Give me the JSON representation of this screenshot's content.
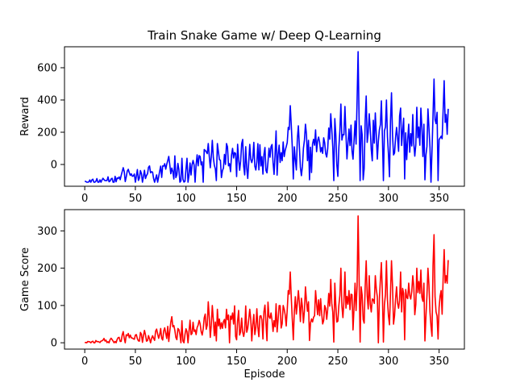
{
  "chart_data": {
    "type": "line",
    "title": "Train Snake Game w/ Deep Q-Learning",
    "panels": [
      {
        "id": "reward",
        "ylabel": "Reward",
        "xlabel": "",
        "xlim": [
          -20,
          375
        ],
        "ylim": [
          -135,
          730
        ],
        "xticks": [
          0,
          50,
          100,
          150,
          200,
          250,
          300,
          350
        ],
        "yticks": [
          0,
          200,
          400,
          600
        ],
        "color": "#0000ff",
        "series_name": "",
        "anchors": [
          [
            0,
            -105
          ],
          [
            10,
            -103
          ],
          [
            20,
            -95
          ],
          [
            30,
            -90
          ],
          [
            40,
            -80
          ],
          [
            50,
            -75
          ],
          [
            60,
            -70
          ],
          [
            70,
            -60
          ],
          [
            80,
            -45
          ],
          [
            90,
            -35
          ],
          [
            100,
            -30
          ],
          [
            110,
            -20
          ],
          [
            120,
            -10
          ],
          [
            130,
            -5
          ],
          [
            140,
            5
          ],
          [
            150,
            10
          ],
          [
            160,
            15
          ],
          [
            170,
            25
          ],
          [
            180,
            35
          ],
          [
            190,
            40
          ],
          [
            200,
            50
          ],
          [
            210,
            55
          ],
          [
            220,
            60
          ],
          [
            230,
            65
          ],
          [
            240,
            60
          ],
          [
            250,
            55
          ],
          [
            260,
            60
          ],
          [
            270,
            70
          ],
          [
            280,
            70
          ],
          [
            290,
            80
          ],
          [
            300,
            85
          ],
          [
            310,
            90
          ],
          [
            320,
            90
          ],
          [
            330,
            95
          ],
          [
            340,
            100
          ],
          [
            350,
            110
          ],
          [
            359,
            190
          ]
        ],
        "noise_floor": 8,
        "noise_scale": [
          [
            0,
            8
          ],
          [
            40,
            25
          ],
          [
            80,
            60
          ],
          [
            120,
            90
          ],
          [
            160,
            100
          ],
          [
            200,
            120
          ],
          [
            240,
            130
          ],
          [
            280,
            150
          ],
          [
            320,
            170
          ],
          [
            359,
            190
          ]
        ],
        "clip": [
          -110,
          700
        ],
        "spikes": [
          [
            38,
            -20
          ],
          [
            43,
            -30
          ],
          [
            79,
            5
          ],
          [
            83,
            50
          ],
          [
            107,
            25
          ],
          [
            113,
            55
          ],
          [
            122,
            130
          ],
          [
            126,
            150
          ],
          [
            131,
            130
          ],
          [
            140,
            130
          ],
          [
            146,
            100
          ],
          [
            163,
            125
          ],
          [
            176,
            170
          ],
          [
            184,
            110
          ],
          [
            196,
            140
          ],
          [
            201,
            230
          ],
          [
            203,
            365
          ],
          [
            211,
            240
          ],
          [
            218,
            250
          ],
          [
            221,
            150
          ],
          [
            228,
            215
          ],
          [
            231,
            170
          ],
          [
            237,
            135
          ],
          [
            243,
            315
          ],
          [
            247,
            285
          ],
          [
            253,
            375
          ],
          [
            257,
            360
          ],
          [
            261,
            220
          ],
          [
            267,
            270
          ],
          [
            270,
            700
          ],
          [
            273,
            240
          ],
          [
            278,
            425
          ],
          [
            281,
            315
          ],
          [
            287,
            320
          ],
          [
            293,
            395
          ],
          [
            298,
            400
          ],
          [
            303,
            445
          ],
          [
            308,
            230
          ],
          [
            312,
            350
          ],
          [
            316,
            420
          ],
          [
            320,
            250
          ],
          [
            324,
            310
          ],
          [
            328,
            355
          ],
          [
            332,
            350
          ],
          [
            335,
            250
          ],
          [
            339,
            345
          ],
          [
            345,
            530
          ],
          [
            352,
            175
          ],
          [
            355,
            520
          ],
          [
            357,
            310
          ]
        ],
        "dips": [
          [
            130,
            -100
          ],
          [
            150,
            -75
          ],
          [
            176,
            -60
          ],
          [
            206,
            -90
          ],
          [
            222,
            -95
          ],
          [
            246,
            -100
          ],
          [
            272,
            -100
          ],
          [
            295,
            -100
          ],
          [
            316,
            -90
          ],
          [
            336,
            -95
          ],
          [
            349,
            -100
          ]
        ]
      },
      {
        "id": "score",
        "ylabel": "Game Score",
        "xlabel": "Episode",
        "xlim": [
          -20,
          375
        ],
        "ylim": [
          -17,
          357
        ],
        "xticks": [
          0,
          50,
          100,
          150,
          200,
          250,
          300,
          350
        ],
        "yticks": [
          0,
          100,
          200,
          300
        ],
        "color": "#ff0000",
        "series_name": "",
        "anchors": [
          [
            0,
            0
          ],
          [
            10,
            1
          ],
          [
            20,
            4
          ],
          [
            30,
            6
          ],
          [
            40,
            10
          ],
          [
            50,
            12
          ],
          [
            60,
            14
          ],
          [
            70,
            18
          ],
          [
            80,
            22
          ],
          [
            90,
            26
          ],
          [
            100,
            28
          ],
          [
            110,
            32
          ],
          [
            120,
            36
          ],
          [
            130,
            40
          ],
          [
            140,
            44
          ],
          [
            150,
            46
          ],
          [
            160,
            48
          ],
          [
            170,
            52
          ],
          [
            180,
            56
          ],
          [
            190,
            58
          ],
          [
            200,
            62
          ],
          [
            210,
            64
          ],
          [
            220,
            66
          ],
          [
            230,
            68
          ],
          [
            240,
            66
          ],
          [
            250,
            64
          ],
          [
            260,
            66
          ],
          [
            270,
            70
          ],
          [
            280,
            70
          ],
          [
            290,
            74
          ],
          [
            300,
            76
          ],
          [
            310,
            78
          ],
          [
            320,
            78
          ],
          [
            330,
            80
          ],
          [
            340,
            82
          ],
          [
            350,
            86
          ],
          [
            359,
            130
          ]
        ],
        "noise_floor": 2,
        "noise_scale": [
          [
            0,
            2
          ],
          [
            40,
            10
          ],
          [
            80,
            22
          ],
          [
            120,
            34
          ],
          [
            160,
            38
          ],
          [
            200,
            46
          ],
          [
            240,
            52
          ],
          [
            280,
            60
          ],
          [
            320,
            68
          ],
          [
            359,
            75
          ]
        ],
        "clip": [
          0,
          340
        ],
        "spikes": [
          [
            38,
            30
          ],
          [
            43,
            25
          ],
          [
            79,
            40
          ],
          [
            86,
            70
          ],
          [
            107,
            55
          ],
          [
            113,
            60
          ],
          [
            122,
            110
          ],
          [
            126,
            100
          ],
          [
            131,
            90
          ],
          [
            140,
            90
          ],
          [
            146,
            80
          ],
          [
            163,
            90
          ],
          [
            176,
            100
          ],
          [
            184,
            80
          ],
          [
            196,
            100
          ],
          [
            201,
            140
          ],
          [
            203,
            190
          ],
          [
            211,
            140
          ],
          [
            218,
            150
          ],
          [
            221,
            110
          ],
          [
            228,
            140
          ],
          [
            231,
            115
          ],
          [
            237,
            100
          ],
          [
            243,
            170
          ],
          [
            247,
            160
          ],
          [
            253,
            200
          ],
          [
            257,
            190
          ],
          [
            261,
            140
          ],
          [
            267,
            160
          ],
          [
            270,
            340
          ],
          [
            273,
            150
          ],
          [
            278,
            220
          ],
          [
            281,
            180
          ],
          [
            287,
            180
          ],
          [
            293,
            215
          ],
          [
            298,
            220
          ],
          [
            303,
            220
          ],
          [
            308,
            150
          ],
          [
            312,
            190
          ],
          [
            316,
            220
          ],
          [
            320,
            160
          ],
          [
            324,
            180
          ],
          [
            328,
            200
          ],
          [
            332,
            195
          ],
          [
            335,
            160
          ],
          [
            339,
            200
          ],
          [
            345,
            290
          ],
          [
            352,
            140
          ],
          [
            355,
            250
          ],
          [
            357,
            180
          ]
        ],
        "dips": [
          [
            130,
            5
          ],
          [
            150,
            8
          ],
          [
            176,
            10
          ],
          [
            206,
            8
          ],
          [
            222,
            6
          ],
          [
            246,
            2
          ],
          [
            272,
            2
          ],
          [
            295,
            2
          ],
          [
            316,
            8
          ],
          [
            336,
            5
          ],
          [
            349,
            10
          ]
        ]
      }
    ],
    "n_points": 360,
    "seed": 7
  }
}
